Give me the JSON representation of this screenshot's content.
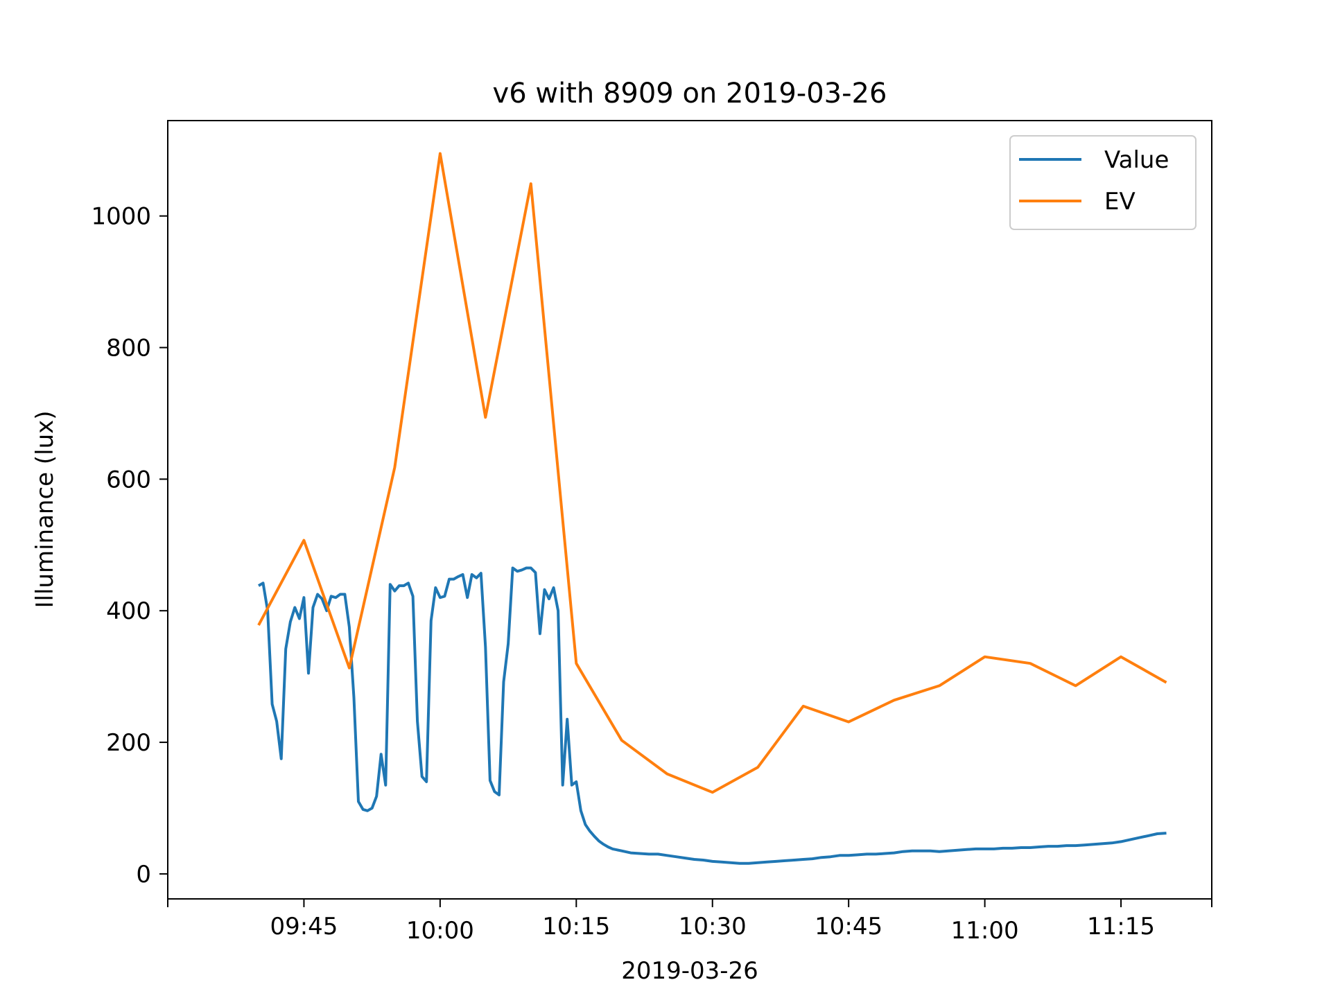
{
  "chart_data": {
    "type": "line",
    "title": "v6 with 8909 on 2019-03-26",
    "xlabel": "2019-03-26",
    "ylabel": "Illuminance (lux)",
    "x_unit": "time (HH:MM)",
    "xlim": [
      "09:30",
      "11:25"
    ],
    "ylim": [
      -38,
      1145
    ],
    "x_ticks": [
      "09:45",
      "10:00",
      "10:15",
      "10:30",
      "10:45",
      "11:00",
      "11:15"
    ],
    "y_ticks": [
      0,
      200,
      400,
      600,
      800,
      1000
    ],
    "grid": false,
    "legend_position": "top-right",
    "series": [
      {
        "name": "Value",
        "color": "#1f77b4",
        "points": [
          [
            "09:40",
            438
          ],
          [
            "09:40:30",
            442
          ],
          [
            "09:41",
            400
          ],
          [
            "09:41:30",
            258
          ],
          [
            "09:42",
            232
          ],
          [
            "09:42:30",
            175
          ],
          [
            "09:43",
            342
          ],
          [
            "09:43:30",
            383
          ],
          [
            "09:44",
            405
          ],
          [
            "09:44:30",
            388
          ],
          [
            "09:45",
            420
          ],
          [
            "09:45:30",
            305
          ],
          [
            "09:46",
            405
          ],
          [
            "09:46:30",
            425
          ],
          [
            "09:47",
            418
          ],
          [
            "09:47:30",
            400
          ],
          [
            "09:48",
            422
          ],
          [
            "09:48:30",
            420
          ],
          [
            "09:49",
            425
          ],
          [
            "09:49:30",
            425
          ],
          [
            "09:50",
            375
          ],
          [
            "09:50:30",
            268
          ],
          [
            "09:51",
            110
          ],
          [
            "09:51:30",
            98
          ],
          [
            "09:52",
            96
          ],
          [
            "09:52:30",
            100
          ],
          [
            "09:53",
            118
          ],
          [
            "09:53:30",
            182
          ],
          [
            "09:54",
            135
          ],
          [
            "09:54:30",
            440
          ],
          [
            "09:55",
            430
          ],
          [
            "09:55:30",
            438
          ],
          [
            "09:56",
            438
          ],
          [
            "09:56:30",
            442
          ],
          [
            "09:57",
            422
          ],
          [
            "09:57:30",
            232
          ],
          [
            "09:58",
            148
          ],
          [
            "09:58:30",
            140
          ],
          [
            "09:59",
            385
          ],
          [
            "09:59:30",
            435
          ],
          [
            "10:00",
            420
          ],
          [
            "10:00:30",
            422
          ],
          [
            "10:01",
            448
          ],
          [
            "10:01:30",
            448
          ],
          [
            "10:02",
            452
          ],
          [
            "10:02:30",
            455
          ],
          [
            "10:03",
            420
          ],
          [
            "10:03:30",
            455
          ],
          [
            "10:04",
            450
          ],
          [
            "10:04:30",
            457
          ],
          [
            "10:05",
            345
          ],
          [
            "10:05:30",
            142
          ],
          [
            "10:06",
            125
          ],
          [
            "10:06:30",
            120
          ],
          [
            "10:07",
            292
          ],
          [
            "10:07:30",
            350
          ],
          [
            "10:08",
            465
          ],
          [
            "10:08:30",
            460
          ],
          [
            "10:09",
            462
          ],
          [
            "10:09:30",
            465
          ],
          [
            "10:10",
            465
          ],
          [
            "10:10:30",
            458
          ],
          [
            "10:11",
            365
          ],
          [
            "10:11:30",
            432
          ],
          [
            "10:12",
            418
          ],
          [
            "10:12:30",
            435
          ],
          [
            "10:13",
            400
          ],
          [
            "10:13:30",
            135
          ],
          [
            "10:14",
            235
          ],
          [
            "10:14:30",
            135
          ],
          [
            "10:15",
            140
          ],
          [
            "10:15:30",
            96
          ],
          [
            "10:16",
            75
          ],
          [
            "10:16:30",
            65
          ],
          [
            "10:17",
            57
          ],
          [
            "10:17:30",
            50
          ],
          [
            "10:18",
            45
          ],
          [
            "10:18:30",
            41
          ],
          [
            "10:19",
            38
          ],
          [
            "10:20",
            35
          ],
          [
            "10:21",
            32
          ],
          [
            "10:22",
            31
          ],
          [
            "10:23",
            30
          ],
          [
            "10:24",
            30
          ],
          [
            "10:25",
            28
          ],
          [
            "10:26",
            26
          ],
          [
            "10:27",
            24
          ],
          [
            "10:28",
            22
          ],
          [
            "10:29",
            21
          ],
          [
            "10:30",
            19
          ],
          [
            "10:31",
            18
          ],
          [
            "10:32",
            17
          ],
          [
            "10:33",
            16
          ],
          [
            "10:34",
            16
          ],
          [
            "10:35",
            17
          ],
          [
            "10:36",
            18
          ],
          [
            "10:37",
            19
          ],
          [
            "10:38",
            20
          ],
          [
            "10:39",
            21
          ],
          [
            "10:40",
            22
          ],
          [
            "10:41",
            23
          ],
          [
            "10:42",
            25
          ],
          [
            "10:43",
            26
          ],
          [
            "10:44",
            28
          ],
          [
            "10:45",
            28
          ],
          [
            "10:46",
            29
          ],
          [
            "10:47",
            30
          ],
          [
            "10:48",
            30
          ],
          [
            "10:49",
            31
          ],
          [
            "10:50",
            32
          ],
          [
            "10:51",
            34
          ],
          [
            "10:52",
            35
          ],
          [
            "10:53",
            35
          ],
          [
            "10:54",
            35
          ],
          [
            "10:55",
            34
          ],
          [
            "10:56",
            35
          ],
          [
            "10:57",
            36
          ],
          [
            "10:58",
            37
          ],
          [
            "10:59",
            38
          ],
          [
            "11:00",
            38
          ],
          [
            "11:01",
            38
          ],
          [
            "11:02",
            39
          ],
          [
            "11:03",
            39
          ],
          [
            "11:04",
            40
          ],
          [
            "11:05",
            40
          ],
          [
            "11:06",
            41
          ],
          [
            "11:07",
            42
          ],
          [
            "11:08",
            42
          ],
          [
            "11:09",
            43
          ],
          [
            "11:10",
            43
          ],
          [
            "11:11",
            44
          ],
          [
            "11:12",
            45
          ],
          [
            "11:13",
            46
          ],
          [
            "11:14",
            47
          ],
          [
            "11:15",
            49
          ],
          [
            "11:16",
            52
          ],
          [
            "11:17",
            55
          ],
          [
            "11:18",
            58
          ],
          [
            "11:19",
            61
          ],
          [
            "11:20",
            62
          ]
        ]
      },
      {
        "name": "EV",
        "color": "#ff7f0e",
        "points": [
          [
            "09:40",
            378
          ],
          [
            "09:45",
            507
          ],
          [
            "09:50",
            313
          ],
          [
            "09:55",
            618
          ],
          [
            "10:00",
            1095
          ],
          [
            "10:05",
            694
          ],
          [
            "10:10",
            1049
          ],
          [
            "10:15",
            320
          ],
          [
            "10:20",
            203
          ],
          [
            "10:25",
            152
          ],
          [
            "10:30",
            124
          ],
          [
            "10:35",
            162
          ],
          [
            "10:40",
            255
          ],
          [
            "10:45",
            231
          ],
          [
            "10:50",
            264
          ],
          [
            "10:55",
            286
          ],
          [
            "11:00",
            330
          ],
          [
            "11:05",
            320
          ],
          [
            "11:10",
            286
          ],
          [
            "11:15",
            330
          ],
          [
            "11:20",
            291
          ]
        ]
      }
    ]
  }
}
